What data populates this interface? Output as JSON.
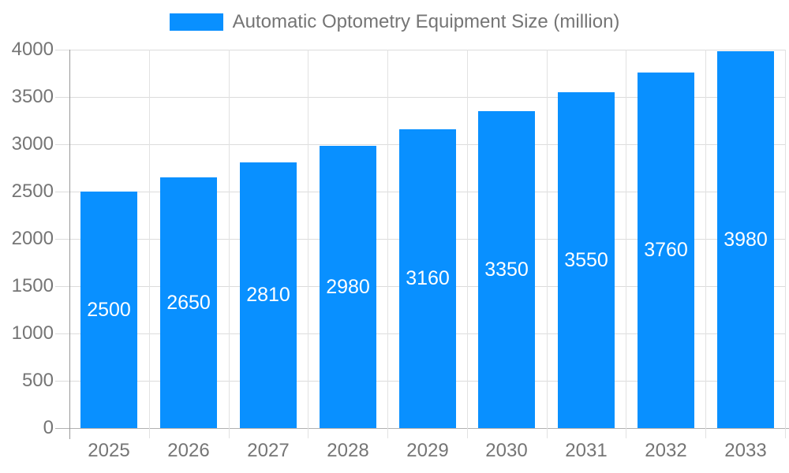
{
  "chart_data": {
    "type": "bar",
    "title": "Automatic Optometry Equipment Size (million)",
    "categories": [
      "2025",
      "2026",
      "2027",
      "2028",
      "2029",
      "2030",
      "2031",
      "2032",
      "2033"
    ],
    "values": [
      2500,
      2650,
      2810,
      2980,
      3160,
      3350,
      3550,
      3760,
      3980
    ],
    "xlabel": "",
    "ylabel": "",
    "ylim": [
      0,
      4000
    ],
    "yticks": [
      0,
      500,
      1000,
      1500,
      2000,
      2500,
      3000,
      3500,
      4000
    ],
    "legend_position": "top-center",
    "grid": true,
    "bar_color": "#0990FF",
    "bar_label_color": "#ffffff",
    "axis_text_color": "#757575",
    "gridline_color": "#dcdcdc",
    "axis_line_color": "#999999",
    "zero_line_color": "#b0b0b0"
  }
}
